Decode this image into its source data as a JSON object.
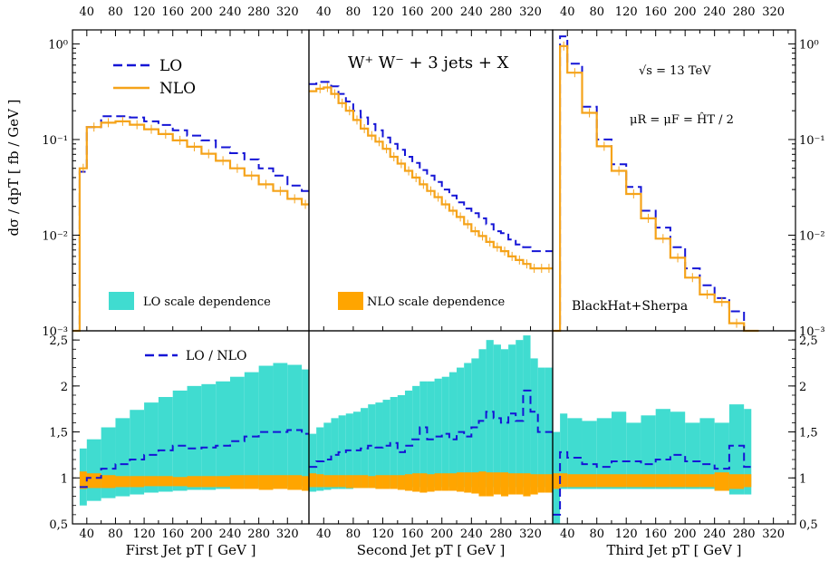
{
  "colors": {
    "lo": "#1515d6",
    "nlo": "#f5a31a",
    "lo_band": "#40dcd0",
    "nlo_band": "#ffa500",
    "frame": "#000000"
  },
  "figure": {
    "process_title": "W⁺ W⁻ + 3 jets + X",
    "energy_label": "√s = 13 TeV",
    "scale_label": "μR = μF = ĤT / 2",
    "generator_label": "BlackHat+Sherpa",
    "upper_ylabel": "dσ / dpT   [ fb / GeV ]",
    "legend": {
      "lo": "LO",
      "nlo": "NLO"
    },
    "ratio_legend": "LO / NLO",
    "band_legend": {
      "lo": "LO scale dependence",
      "nlo": "NLO scale dependence"
    },
    "upper_y_ticks": [
      "10⁰",
      "10⁻¹",
      "10⁻²",
      "10⁻³"
    ],
    "ratio_y_ticks": [
      "2,5",
      "2",
      "1,5",
      "1",
      "0,5"
    ]
  },
  "chart_data": [
    {
      "type": "line",
      "panel": "first-jet",
      "xlabel": "First Jet pT  [ GeV ]",
      "xlim": [
        20,
        350
      ],
      "x_ticks": [
        40,
        80,
        120,
        160,
        200,
        240,
        280,
        320
      ],
      "upper": {
        "scale": "log",
        "ylim": [
          0.001,
          1.4
        ],
        "bin_edges": [
          20,
          30,
          40,
          60,
          80,
          100,
          120,
          140,
          160,
          180,
          200,
          220,
          240,
          260,
          280,
          300,
          320,
          340,
          350
        ],
        "series": [
          {
            "name": "LO",
            "values": [
              0.0001,
              0.046,
              0.135,
              0.175,
              0.175,
              0.17,
              0.155,
              0.142,
              0.125,
              0.11,
              0.098,
              0.083,
              0.072,
              0.062,
              0.05,
              0.042,
              0.033,
              0.029
            ]
          },
          {
            "name": "NLO",
            "values": [
              0.0001,
              0.05,
              0.135,
              0.15,
              0.155,
              0.143,
              0.128,
              0.114,
              0.098,
              0.084,
              0.071,
              0.06,
              0.05,
              0.042,
              0.034,
              0.029,
              0.024,
              0.021
            ]
          }
        ]
      },
      "ratio": {
        "ylim": [
          0.5,
          2.6
        ],
        "bin_edges": [
          30,
          40,
          60,
          80,
          100,
          120,
          140,
          160,
          180,
          200,
          220,
          240,
          260,
          280,
          300,
          320,
          340,
          350
        ],
        "lo_nlo": [
          0.9,
          1.0,
          1.1,
          1.15,
          1.2,
          1.25,
          1.3,
          1.35,
          1.32,
          1.33,
          1.35,
          1.4,
          1.45,
          1.5,
          1.5,
          1.52,
          1.48
        ],
        "lo_band": {
          "low": [
            0.7,
            0.75,
            0.78,
            0.8,
            0.82,
            0.84,
            0.85,
            0.86,
            0.87,
            0.87,
            0.88,
            0.89,
            0.9,
            0.9,
            0.9,
            0.91,
            0.91
          ],
          "high": [
            1.32,
            1.42,
            1.55,
            1.65,
            1.74,
            1.82,
            1.88,
            1.95,
            2.0,
            2.02,
            2.05,
            2.1,
            2.15,
            2.22,
            2.25,
            2.23,
            2.18
          ]
        },
        "nlo_band": {
          "low": [
            0.88,
            0.89,
            0.89,
            0.9,
            0.9,
            0.91,
            0.91,
            0.91,
            0.9,
            0.9,
            0.9,
            0.88,
            0.88,
            0.87,
            0.88,
            0.87,
            0.86
          ],
          "high": [
            1.07,
            1.05,
            1.03,
            1.02,
            1.02,
            1.02,
            1.02,
            1.01,
            1.02,
            1.02,
            1.02,
            1.03,
            1.03,
            1.03,
            1.03,
            1.03,
            1.02
          ]
        }
      }
    },
    {
      "type": "line",
      "panel": "second-jet",
      "xlabel": "Second Jet pT  [ GeV ]",
      "xlim": [
        20,
        350
      ],
      "x_ticks": [
        40,
        80,
        120,
        160,
        200,
        240,
        280,
        320
      ],
      "upper": {
        "scale": "log",
        "ylim": [
          0.001,
          1.4
        ],
        "bin_edges": [
          20,
          30,
          40,
          50,
          60,
          70,
          80,
          90,
          100,
          110,
          120,
          130,
          140,
          150,
          160,
          170,
          180,
          190,
          200,
          210,
          220,
          230,
          240,
          250,
          260,
          270,
          280,
          290,
          300,
          310,
          320,
          330,
          340,
          350
        ],
        "series": [
          {
            "name": "LO",
            "values": [
              0.38,
              0.4,
              0.4,
              0.36,
              0.3,
              0.25,
              0.2,
              0.17,
              0.145,
              0.125,
              0.105,
              0.09,
              0.078,
              0.066,
              0.057,
              0.048,
              0.042,
              0.036,
              0.03,
              0.026,
              0.022,
              0.019,
              0.017,
              0.015,
              0.013,
              0.011,
              0.0105,
              0.009,
              0.008,
              0.0075,
              0.0068,
              0.0068,
              0.0068
            ]
          },
          {
            "name": "NLO",
            "values": [
              0.32,
              0.34,
              0.35,
              0.3,
              0.24,
              0.2,
              0.16,
              0.13,
              0.11,
              0.095,
              0.08,
              0.066,
              0.056,
              0.047,
              0.04,
              0.034,
              0.029,
              0.025,
              0.021,
              0.018,
              0.0155,
              0.013,
              0.011,
              0.0098,
              0.0085,
              0.0075,
              0.0068,
              0.006,
              0.0055,
              0.005,
              0.0045,
              0.0045,
              0.0045
            ]
          }
        ]
      },
      "ratio": {
        "ylim": [
          0.5,
          2.6
        ],
        "bin_edges": [
          20,
          30,
          40,
          50,
          60,
          70,
          80,
          90,
          100,
          110,
          120,
          130,
          140,
          150,
          160,
          170,
          180,
          190,
          200,
          210,
          220,
          230,
          240,
          250,
          260,
          270,
          280,
          290,
          300,
          310,
          320,
          330,
          340,
          350
        ],
        "lo_nlo": [
          1.12,
          1.18,
          1.2,
          1.25,
          1.28,
          1.3,
          1.3,
          1.32,
          1.35,
          1.33,
          1.35,
          1.38,
          1.28,
          1.35,
          1.42,
          1.55,
          1.42,
          1.45,
          1.48,
          1.42,
          1.5,
          1.45,
          1.55,
          1.62,
          1.72,
          1.65,
          1.6,
          1.7,
          1.62,
          1.95,
          1.72,
          1.5,
          1.5
        ],
        "lo_band": {
          "low": [
            0.85,
            0.86,
            0.87,
            0.88,
            0.88,
            0.88,
            0.89,
            0.89,
            0.89,
            0.9,
            0.9,
            0.9,
            0.9,
            0.9,
            0.9,
            0.9,
            0.9,
            0.9,
            0.9,
            0.9,
            0.9,
            0.9,
            0.9,
            0.9,
            0.9,
            0.9,
            0.9,
            0.9,
            0.9,
            0.9,
            0.9,
            0.9,
            0.9
          ],
          "high": [
            1.48,
            1.55,
            1.6,
            1.65,
            1.68,
            1.7,
            1.72,
            1.76,
            1.8,
            1.82,
            1.85,
            1.88,
            1.9,
            1.95,
            2.0,
            2.05,
            2.05,
            2.08,
            2.1,
            2.15,
            2.2,
            2.25,
            2.3,
            2.4,
            2.5,
            2.45,
            2.4,
            2.45,
            2.5,
            2.55,
            2.3,
            2.2,
            2.2
          ]
        },
        "nlo_band": {
          "low": [
            0.9,
            0.9,
            0.9,
            0.9,
            0.9,
            0.89,
            0.89,
            0.89,
            0.89,
            0.88,
            0.88,
            0.88,
            0.87,
            0.86,
            0.85,
            0.84,
            0.85,
            0.86,
            0.86,
            0.86,
            0.85,
            0.84,
            0.83,
            0.8,
            0.8,
            0.82,
            0.8,
            0.82,
            0.82,
            0.8,
            0.82,
            0.84,
            0.84
          ],
          "high": [
            1.05,
            1.04,
            1.03,
            1.03,
            1.03,
            1.03,
            1.03,
            1.03,
            1.02,
            1.03,
            1.03,
            1.03,
            1.03,
            1.04,
            1.05,
            1.05,
            1.04,
            1.05,
            1.05,
            1.05,
            1.06,
            1.06,
            1.06,
            1.07,
            1.06,
            1.06,
            1.06,
            1.05,
            1.05,
            1.05,
            1.04,
            1.04,
            1.04
          ]
        }
      }
    },
    {
      "type": "line",
      "panel": "third-jet",
      "xlabel": "Third Jet pT  [ GeV ]",
      "xlim": [
        20,
        350
      ],
      "x_ticks": [
        40,
        80,
        120,
        160,
        200,
        240,
        280,
        320
      ],
      "upper": {
        "scale": "log",
        "ylim": [
          0.001,
          1.4
        ],
        "bin_edges": [
          20,
          30,
          40,
          60,
          80,
          100,
          120,
          140,
          160,
          180,
          200,
          220,
          240,
          260,
          280,
          300
        ],
        "series": [
          {
            "name": "LO",
            "values": [
              0.0001,
              1.2,
              0.62,
              0.22,
              0.1,
              0.055,
              0.032,
              0.018,
              0.012,
              0.0075,
              0.0045,
              0.003,
              0.0022,
              0.0016,
              0.001
            ]
          },
          {
            "name": "NLO",
            "values": [
              0.0001,
              0.95,
              0.5,
              0.19,
              0.085,
              0.047,
              0.027,
              0.015,
              0.0092,
              0.0058,
              0.0036,
              0.0024,
              0.002,
              0.0012,
              0.00085
            ]
          }
        ]
      },
      "ratio": {
        "ylim": [
          0.5,
          2.6
        ],
        "bin_edges": [
          20,
          30,
          40,
          60,
          80,
          100,
          120,
          140,
          160,
          180,
          200,
          220,
          240,
          260,
          280,
          290
        ],
        "lo_nlo": [
          0.6,
          1.28,
          1.22,
          1.15,
          1.12,
          1.18,
          1.18,
          1.15,
          1.2,
          1.25,
          1.18,
          1.15,
          1.1,
          1.35,
          1.12
        ],
        "lo_band": {
          "low": [
            0.5,
            0.88,
            0.88,
            0.88,
            0.88,
            0.88,
            0.88,
            0.88,
            0.88,
            0.88,
            0.88,
            0.88,
            0.86,
            0.82,
            0.82
          ],
          "high": [
            1.5,
            1.7,
            1.65,
            1.62,
            1.65,
            1.72,
            1.6,
            1.68,
            1.75,
            1.72,
            1.6,
            1.65,
            1.6,
            1.8,
            1.75
          ]
        },
        "nlo_band": {
          "low": [
            0.88,
            0.9,
            0.9,
            0.9,
            0.9,
            0.9,
            0.9,
            0.9,
            0.9,
            0.9,
            0.9,
            0.9,
            0.86,
            0.88,
            0.9
          ],
          "high": [
            1.05,
            1.05,
            1.04,
            1.04,
            1.04,
            1.04,
            1.04,
            1.04,
            1.04,
            1.04,
            1.04,
            1.04,
            1.06,
            1.04,
            1.04
          ]
        }
      }
    }
  ]
}
